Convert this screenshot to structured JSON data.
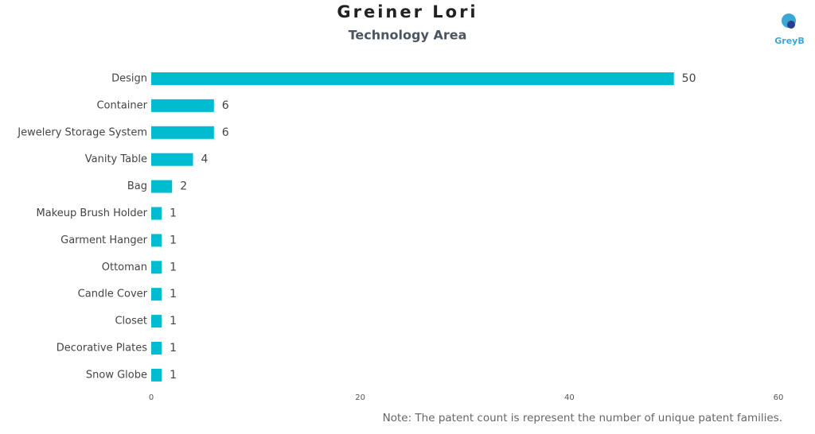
{
  "chart_data": {
    "type": "bar",
    "orientation": "horizontal",
    "title": "Greiner Lori",
    "subtitle": "Technology Area",
    "categories": [
      "Design",
      "Container",
      "Jewelery Storage System",
      "Vanity Table",
      "Bag",
      "Makeup Brush Holder",
      "Garment Hanger",
      "Ottoman",
      "Candle Cover",
      "Closet",
      "Decorative Plates",
      "Snow Globe"
    ],
    "values": [
      50,
      6,
      6,
      4,
      2,
      1,
      1,
      1,
      1,
      1,
      1,
      1
    ],
    "color": "#00bcd0",
    "xlim": [
      0,
      60
    ],
    "xticks": [
      0,
      20,
      40,
      60
    ],
    "grid": false,
    "note": "Note: The patent count is represent the number of unique patent families.",
    "logo": "GreyB"
  }
}
